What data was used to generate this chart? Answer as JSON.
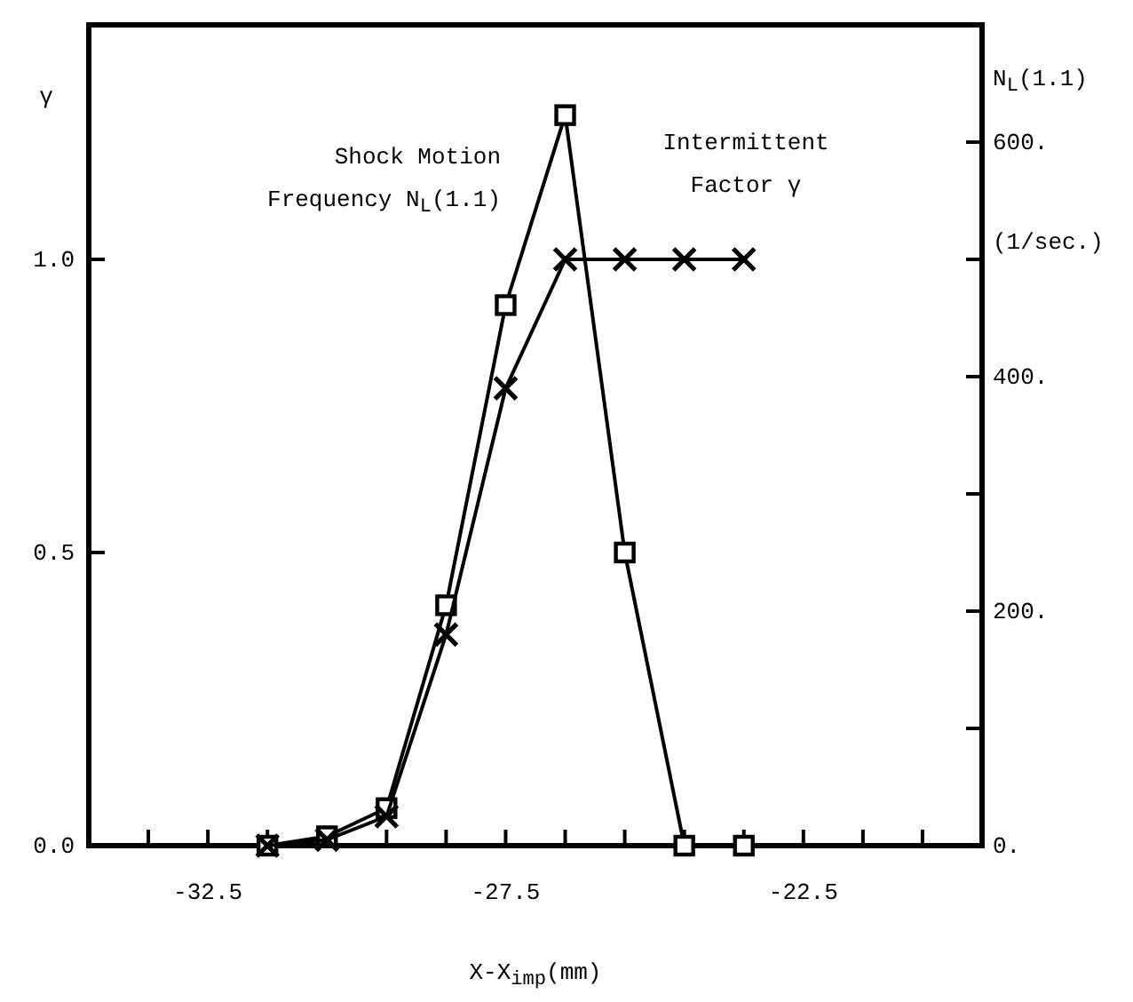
{
  "chart_data": {
    "type": "line",
    "xlabel": "X-X$_{imp}$(mm)",
    "ylabel": "γ",
    "y2label": "N$_{L}$(1.1)\n(1/sec.)",
    "xlim": [
      -34.5,
      -19.5
    ],
    "xticks": [
      {
        "value": -33.5,
        "label": null
      },
      {
        "value": -32.5,
        "label": "-32.5"
      },
      {
        "value": -31.5,
        "label": null
      },
      {
        "value": -30.5,
        "label": null
      },
      {
        "value": -29.5,
        "label": null
      },
      {
        "value": -28.5,
        "label": null
      },
      {
        "value": -27.5,
        "label": "-27.5"
      },
      {
        "value": -26.5,
        "label": null
      },
      {
        "value": -25.5,
        "label": null
      },
      {
        "value": -24.5,
        "label": null
      },
      {
        "value": -23.5,
        "label": null
      },
      {
        "value": -22.5,
        "label": "-22.5"
      },
      {
        "value": -21.5,
        "label": null
      },
      {
        "value": -20.5,
        "label": null
      }
    ],
    "ylim": [
      0,
      1.4
    ],
    "yticks": [
      {
        "value": 0,
        "label": "0.0"
      },
      {
        "value": 0.5,
        "label": "0.5"
      },
      {
        "value": 1,
        "label": "1.0"
      }
    ],
    "y2lim": [
      0,
      700
    ],
    "y2ticks": [
      {
        "value": 0,
        "label": "0."
      },
      {
        "value": 100,
        "label": null
      },
      {
        "value": 200,
        "label": "200."
      },
      {
        "value": 300,
        "label": null
      },
      {
        "value": 400,
        "label": "400."
      },
      {
        "value": 500,
        "label": null
      },
      {
        "value": 600,
        "label": "600."
      }
    ],
    "x": [
      -31.5,
      -30.5,
      -29.5,
      -28.5,
      -27.5,
      -26.5,
      -25.5,
      -24.5,
      -23.5
    ],
    "grid": false,
    "line_style": "solid",
    "series": [
      {
        "name": "Shock Motion\nFrequency N$_{L}$(1.1)",
        "color": "#000000",
        "axis": "y2",
        "marker": "square",
        "values": [
          0,
          8,
          32,
          205,
          461,
          623,
          250,
          0,
          0
        ]
      },
      {
        "name": "Intermittent\nFactor γ",
        "color": "#000000",
        "axis": "y",
        "marker": "cross",
        "x": [
          -31.5,
          -30.5,
          -29.5,
          -28.5,
          -27.5,
          -26.5,
          -25.5,
          -24.5,
          -23.5
        ],
        "values": [
          0,
          0.01,
          0.05,
          0.36,
          0.78,
          1.0,
          1.0,
          1.0,
          1.0
        ]
      }
    ]
  }
}
